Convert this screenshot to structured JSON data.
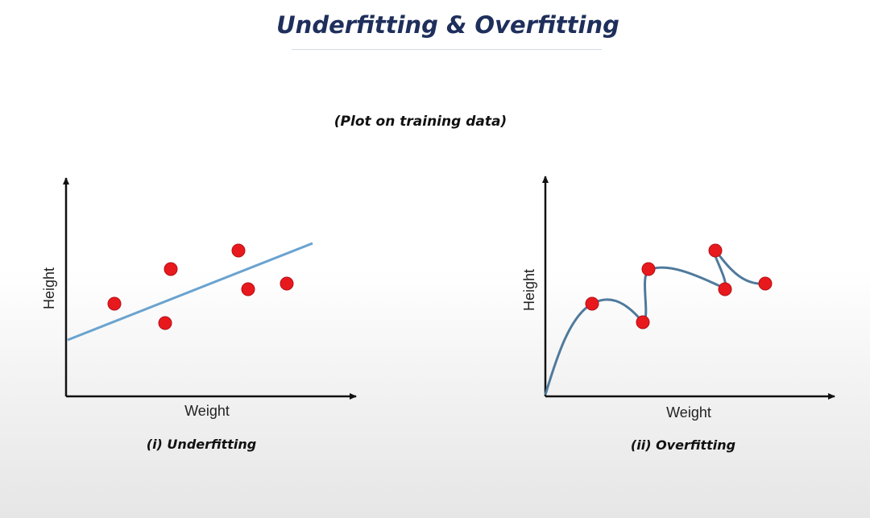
{
  "title": "Underfitting & Overfitting",
  "subtitle": "(Plot on training data)",
  "colors": {
    "title": "#1f2f5c",
    "fit_line": "#6aa3d0",
    "fit_curve": "#4f7a9c",
    "point_fill": "#e8191c",
    "point_stroke": "#b5101a",
    "axis": "#111111"
  },
  "panels": [
    {
      "caption": "(i) Underfitting",
      "xlabel": "Weight",
      "ylabel": "Height"
    },
    {
      "caption": "(ii) Overfitting",
      "xlabel": "Weight",
      "ylabel": "Height"
    }
  ]
}
